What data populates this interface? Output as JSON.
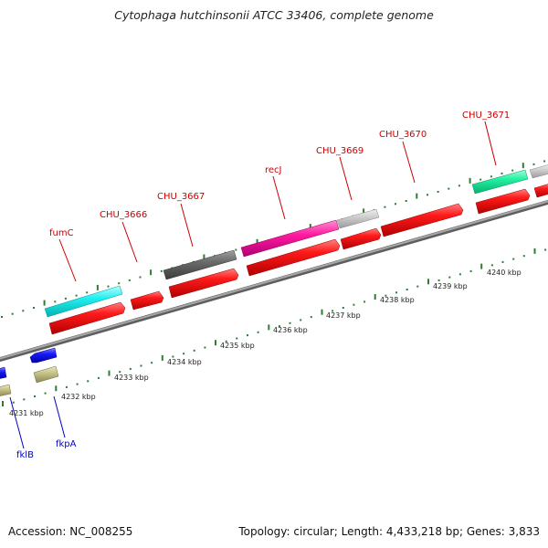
{
  "title": "Cytophaga hutchinsonii ATCC 33406, complete genome",
  "footer": {
    "accession": "Accession: NC_008255",
    "topology": "Topology: circular; Length: 4,433,218 bp; Genes: 3,833"
  },
  "colors": {
    "backbone": "#8c8c8c",
    "ticks": "#2e7d32",
    "label_forward": "#cc0000",
    "label_reverse": "#0000cc",
    "gene_red": "#e00000"
  },
  "scale": {
    "unit": "kbp",
    "labels": [
      "4231 kbp",
      "4232 kbp",
      "4233 kbp",
      "4234 kbp",
      "4235 kbp",
      "4236 kbp",
      "4237 kbp",
      "4238 kbp",
      "4239 kbp",
      "4240 kbp"
    ]
  },
  "forward_labels": [
    "fumC",
    "CHU_3666",
    "CHU_3667",
    "recJ",
    "CHU_3669",
    "CHU_3670",
    "CHU_3671"
  ],
  "reverse_labels": [
    "fklB",
    "fkpA"
  ]
}
